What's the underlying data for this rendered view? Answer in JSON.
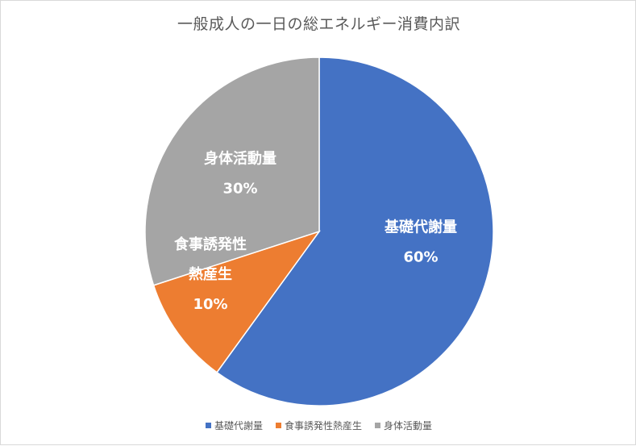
{
  "chart_data": {
    "type": "pie",
    "title": "一般成人の一日の総エネルギー消費内訳",
    "categories": [
      "基礎代謝量",
      "食事誘発性熱産生",
      "身体活動量"
    ],
    "values": [
      60,
      10,
      30
    ],
    "data_labels": [
      {
        "name_lines": [
          "基礎代謝量"
        ],
        "value": "60%"
      },
      {
        "name_lines": [
          "食事誘発性",
          "熱産生"
        ],
        "value": "10%"
      },
      {
        "name_lines": [
          "身体活動量"
        ],
        "value": "30%"
      }
    ],
    "colors": [
      "#4472c4",
      "#ed7d31",
      "#a5a5a5"
    ],
    "legend": {
      "position": "bottom",
      "items": [
        "基礎代謝量",
        "食事誘発性熱産生",
        "身体活動量"
      ]
    }
  }
}
